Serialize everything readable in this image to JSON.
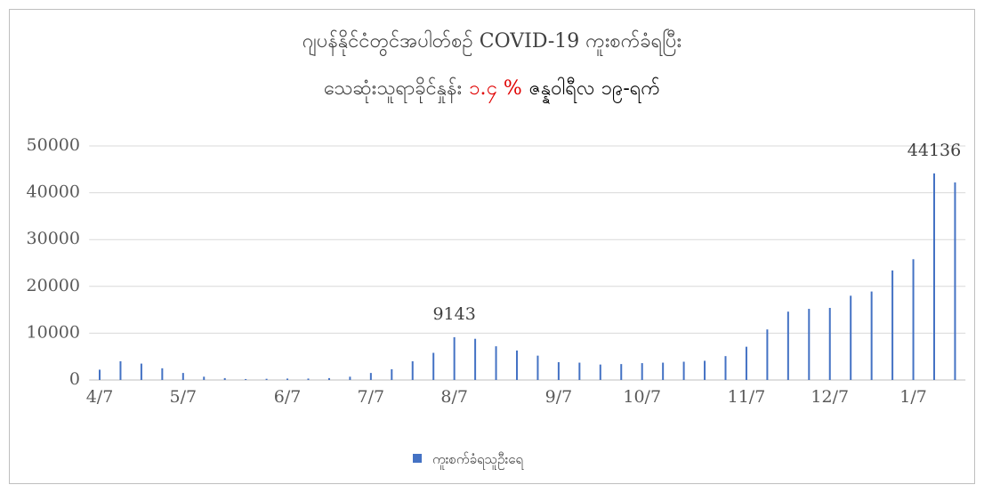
{
  "chart_data": {
    "type": "bar",
    "title": "ဂျပန်နိုင်ငံတွင်အပါတ်စဉ် COVID-19 ကူးစက်ခံရပြီး",
    "subtitle": [
      "သေဆုံးသူရာခိုင်နှုန်း",
      "၁.၄ %",
      "ဇန္နဝါရီလ ၁၉-ရက်"
    ],
    "categories": [
      "4/7",
      null,
      null,
      null,
      "5/7",
      null,
      null,
      null,
      null,
      "6/7",
      null,
      null,
      null,
      "7/7",
      null,
      null,
      null,
      "8/7",
      null,
      null,
      null,
      null,
      "9/7",
      null,
      null,
      null,
      "10/7",
      null,
      null,
      null,
      null,
      "11/7",
      null,
      null,
      null,
      "12/7",
      null,
      null,
      null,
      "1/7",
      null,
      null
    ],
    "series": [
      {
        "name": "ကူးစက်ခံရသူဦးရေ",
        "color": "#4472c4",
        "values": [
          2200,
          4000,
          3500,
          2500,
          1500,
          700,
          400,
          200,
          250,
          300,
          300,
          400,
          700,
          1500,
          2300,
          4000,
          5800,
          9143,
          8800,
          7200,
          6300,
          5200,
          3800,
          3700,
          3300,
          3400,
          3600,
          3700,
          3900,
          4100,
          5100,
          7100,
          10800,
          14600,
          15200,
          15400,
          18000,
          18900,
          23400,
          25800,
          44136,
          42200
        ],
        "value_labels": [
          null,
          null,
          null,
          null,
          null,
          null,
          null,
          null,
          null,
          null,
          null,
          null,
          null,
          null,
          null,
          null,
          null,
          "9143",
          null,
          null,
          null,
          null,
          null,
          null,
          null,
          null,
          null,
          null,
          null,
          null,
          null,
          null,
          null,
          null,
          null,
          null,
          null,
          null,
          null,
          null,
          "44136",
          null
        ]
      }
    ],
    "ylim": [
      0,
      50000
    ],
    "yticks": [
      0,
      10000,
      20000,
      30000,
      40000,
      50000
    ],
    "grid": true,
    "legend": "bottom"
  }
}
